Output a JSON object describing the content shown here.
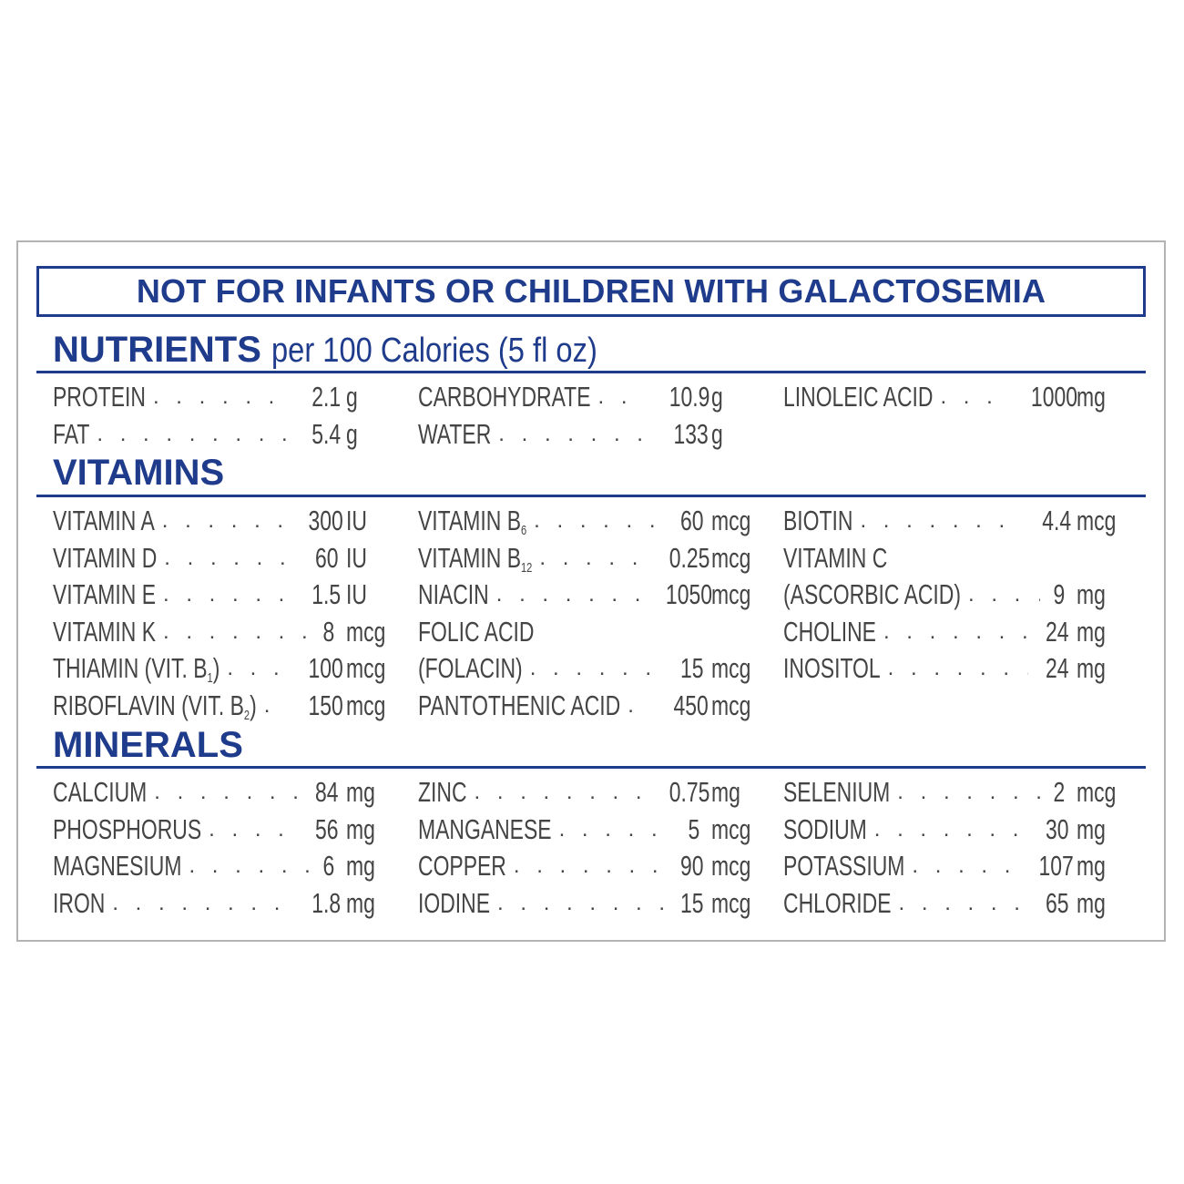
{
  "warning": "NOT FOR INFANTS OR CHILDREN WITH GALACTOSEMIA",
  "nutrients": {
    "title": "NUTRIENTS",
    "subtitle": "per 100 Calories (5 fl oz)",
    "col1": [
      {
        "label": "PROTEIN",
        "dots": ". . . . . . . . . . . . .",
        "value": "2.1",
        "unit": "g"
      },
      {
        "label": "FAT",
        "dots": ". . . . . . . . . . . . . . . . .",
        "value": "5.4",
        "unit": "g"
      }
    ],
    "col2": [
      {
        "label": "CARBOHYDRATE",
        "dots": ". . . . .",
        "value": "10.9",
        "unit": "g"
      },
      {
        "label": "WATER",
        "dots": ". . . . . . . . . . . .",
        "value": "133",
        "unit": "g"
      }
    ],
    "col3": [
      {
        "label": "LINOLEIC ACID",
        "dots": ". . . . . . .",
        "value": "1000",
        "unit": "mg"
      }
    ]
  },
  "vitamins": {
    "title": "VITAMINS",
    "col1": [
      {
        "label": "VITAMIN A",
        "dots": ". . . . . . . . . . .",
        "value": "300",
        "unit": "IU"
      },
      {
        "label": "VITAMIN D",
        "dots": ". . . . . . . . . . .",
        "value": "60",
        "unit": "IU"
      },
      {
        "label": "VITAMIN E",
        "dots": ". . . . . . . . . . . . .",
        "value": "1.5",
        "unit": "IU"
      },
      {
        "label": "VITAMIN K",
        "dots": ". . . . . . . . . . . . .",
        "value": "8",
        "unit": "mcg"
      },
      {
        "label": "THIAMIN (VIT. B",
        "sub": "1",
        "after": ")",
        "dots": ". . . . . . . .",
        "value": "100",
        "unit": "mcg"
      },
      {
        "label": "RIBOFLAVIN (VIT. B",
        "sub": "2",
        "after": ")",
        "dots": ". . . .",
        "value": "150",
        "unit": "mcg"
      }
    ],
    "col2": [
      {
        "label": "VITAMIN B",
        "sub": "6",
        "after": "",
        "dots": ". . . . . . . . . . .",
        "value": "60",
        "unit": "mcg"
      },
      {
        "label": "VITAMIN B",
        "sub": "12",
        "after": "",
        "dots": ". . . . . . . . . . .",
        "value": "0.25",
        "unit": "mcg"
      },
      {
        "label": "NIACIN",
        "dots": ". . . . . . . . . . .",
        "value": "1050",
        "unit": "mcg"
      },
      {
        "label": "FOLIC ACID",
        "dots": "",
        "value": "",
        "unit": ""
      },
      {
        "label": " (FOLACIN)",
        "dots": ". . . . . . . . . . .",
        "value": "15",
        "unit": "mcg"
      },
      {
        "label": "PANTOTHENIC ACID",
        "dots": ". . . .",
        "value": "450",
        "unit": "mcg"
      }
    ],
    "col3": [
      {
        "label": "BIOTIN",
        "dots": ". . . . . . . . . . . . . . .",
        "value": "4.4",
        "unit": "mcg"
      },
      {
        "label": "VITAMIN C",
        "dots": "",
        "value": "",
        "unit": ""
      },
      {
        "label": " (ASCORBIC ACID)",
        "dots": ". . . . . . .",
        "value": "9",
        "unit": "mg"
      },
      {
        "label": "CHOLINE",
        "dots": ". . . . . . . . . . . .",
        "value": "24",
        "unit": "mg"
      },
      {
        "label": "INOSITOL",
        "dots": ". . . . . . . . . . . .",
        "value": "24",
        "unit": "mg"
      }
    ]
  },
  "minerals": {
    "title": "MINERALS",
    "col1": [
      {
        "label": "CALCIUM",
        "dots": ". . . . . . . . . . . .",
        "value": "84",
        "unit": "mg"
      },
      {
        "label": "PHOSPHORUS",
        "dots": ". . . . . . . . .",
        "value": "56",
        "unit": "mg"
      },
      {
        "label": "MAGNESIUM",
        "dots": ". . . . . . . . . .",
        "value": "6",
        "unit": "mg"
      },
      {
        "label": "IRON",
        "dots": ". . . . . . . . . . . . . . . . .",
        "value": "1.8",
        "unit": "mg"
      }
    ],
    "col2": [
      {
        "label": "ZINC",
        "dots": ". . . . . . . . . . . . . . . . . .",
        "value": "0.75",
        "unit": "mg"
      },
      {
        "label": "MANGANESE",
        "dots": ". . . . . . . . . .",
        "value": "5",
        "unit": "mcg"
      },
      {
        "label": "COPPER",
        "dots": ". . . . . . . . . . . . .",
        "value": "90",
        "unit": "mcg"
      },
      {
        "label": "IODINE",
        "dots": ". . . . . . . . . . . . .",
        "value": "15",
        "unit": "mcg"
      }
    ],
    "col3": [
      {
        "label": "SELENIUM",
        "dots": ". . . . . . . . . . .",
        "value": "2",
        "unit": "mcg"
      },
      {
        "label": "SODIUM",
        "dots": ". . . . . . . . . . . .",
        "value": "30",
        "unit": "mg"
      },
      {
        "label": "POTASSIUM",
        "dots": ". . . . . . . . . .",
        "value": "107",
        "unit": "mg"
      },
      {
        "label": "CHLORIDE",
        "dots": ". . . . . . . . . . .",
        "value": "65",
        "unit": "mg"
      }
    ]
  }
}
